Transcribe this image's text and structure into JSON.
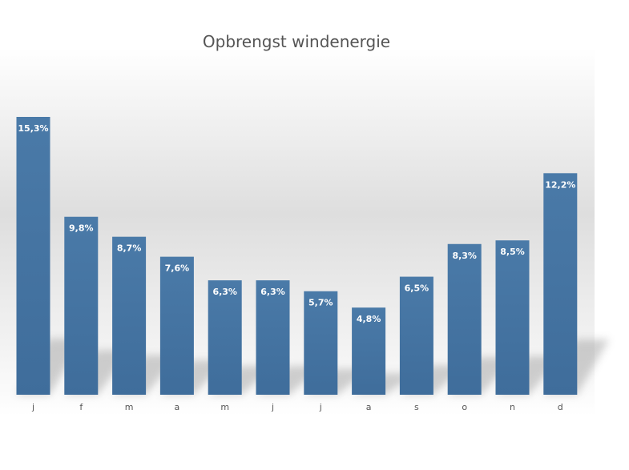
{
  "chart_data": {
    "type": "bar",
    "title": "Opbrengst windenergie",
    "xlabel": "",
    "ylabel": "",
    "categories": [
      "j",
      "f",
      "m",
      "a",
      "m",
      "j",
      "j",
      "a",
      "s",
      "o",
      "n",
      "d"
    ],
    "values": [
      15.3,
      9.8,
      8.7,
      7.6,
      6.3,
      6.3,
      5.7,
      4.8,
      6.5,
      8.3,
      8.5,
      12.2
    ],
    "value_labels": [
      "15,3%",
      "9,8%",
      "8,7%",
      "7,6%",
      "6,3%",
      "6,3%",
      "5,7%",
      "4,8%",
      "6,5%",
      "8,3%",
      "8,5%",
      "12,2%"
    ],
    "unit": "%",
    "ylim": [
      0,
      15.3
    ],
    "grid": false,
    "legend": "none",
    "bar_color": "#3f6d9b",
    "bar_color_light": "#4a7aa8",
    "title_color": "#555555",
    "tick_label_color": "#555555",
    "data_label_color": "#ffffff"
  }
}
